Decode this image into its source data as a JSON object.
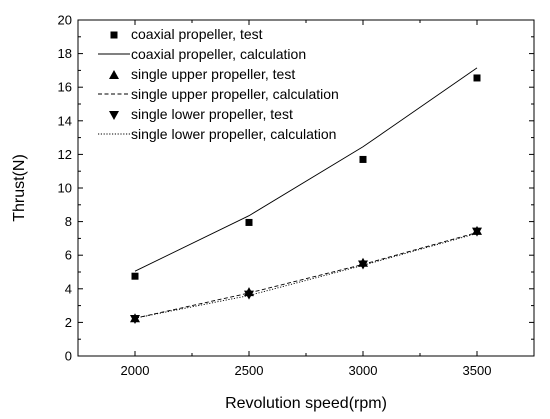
{
  "chart_data": {
    "type": "line",
    "xlabel": "Revolution speed(rpm)",
    "ylabel": "Thrust(N)",
    "xlim": [
      1750,
      3750
    ],
    "ylim": [
      0,
      20
    ],
    "x_ticks": [
      2000,
      2500,
      3000,
      3500
    ],
    "y_ticks": [
      0,
      2,
      4,
      6,
      8,
      10,
      12,
      14,
      16,
      18,
      20
    ],
    "grid": false,
    "legend": "top-left",
    "series": [
      {
        "name": "coaxial propeller, test",
        "kind": "scatter",
        "marker": "square",
        "x": [
          2000,
          2500,
          3000,
          3500
        ],
        "y": [
          4.75,
          7.95,
          11.7,
          16.55
        ]
      },
      {
        "name": "coaxial propeller, calculation",
        "kind": "line",
        "dash": "solid",
        "x": [
          2000,
          2500,
          3000,
          3500
        ],
        "y": [
          5.05,
          8.35,
          12.45,
          17.15
        ]
      },
      {
        "name": "single upper propeller, test",
        "kind": "scatter",
        "marker": "triangle-up",
        "x": [
          2000,
          2500,
          3000,
          3500
        ],
        "y": [
          2.25,
          3.8,
          5.55,
          7.45
        ]
      },
      {
        "name": "single upper propeller, calculation",
        "kind": "line",
        "dash": "dashed",
        "x": [
          2000,
          2500,
          3000,
          3500
        ],
        "y": [
          2.25,
          3.75,
          5.45,
          7.35
        ]
      },
      {
        "name": "single lower propeller, test",
        "kind": "scatter",
        "marker": "triangle-down",
        "x": [
          2000,
          2500,
          3000,
          3500
        ],
        "y": [
          2.2,
          3.65,
          5.45,
          7.4
        ]
      },
      {
        "name": "single lower propeller, calculation",
        "kind": "line",
        "dash": "dotted",
        "x": [
          2000,
          2500,
          3000,
          3500
        ],
        "y": [
          2.25,
          3.6,
          5.4,
          7.3
        ]
      }
    ]
  }
}
